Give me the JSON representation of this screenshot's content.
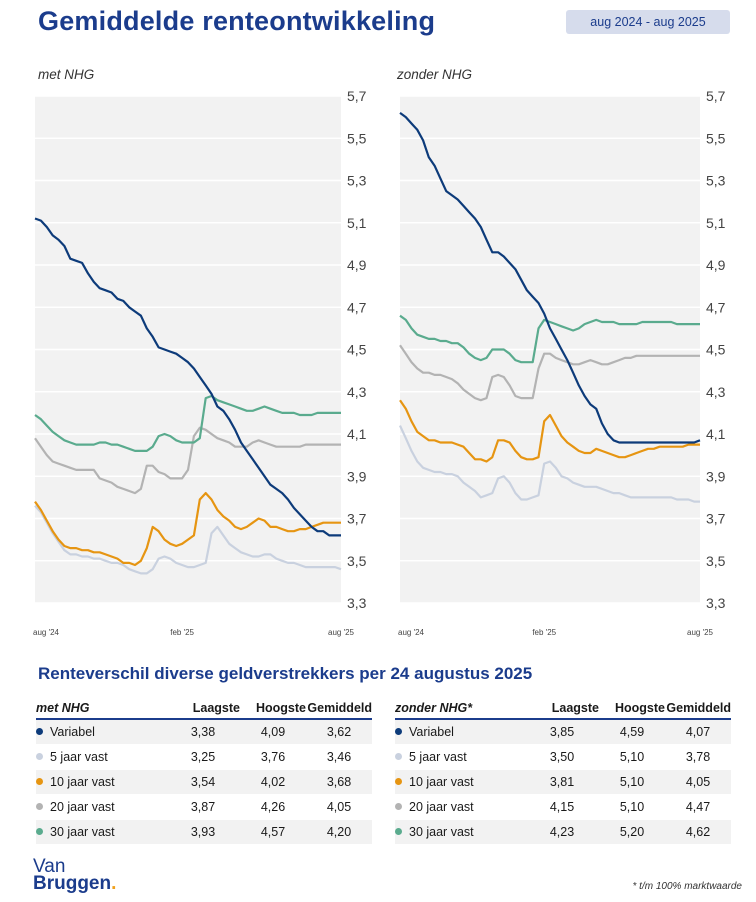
{
  "title": "Gemiddelde renteontwikkeling",
  "period": "aug 2024 - aug 2025",
  "colors": {
    "variabel": "#0d3b7a",
    "5_jaar_vast": "#c9d1df",
    "10_jaar_vast": "#e69512",
    "20_jaar_vast": "#b3b3b3",
    "30_jaar_vast": "#5aab8e",
    "brand": "#1b3c8c"
  },
  "chart_data": [
    {
      "type": "line",
      "label": "met NHG",
      "ylim": [
        3.3,
        5.7
      ],
      "yticks": [
        "5,7",
        "5,5",
        "5,3",
        "5,1",
        "4,9",
        "4,7",
        "4,5",
        "4,3",
        "4,1",
        "3,9",
        "3,7",
        "3,5",
        "3,3"
      ],
      "xticks": [
        "aug '24",
        "feb '25",
        "aug '25"
      ],
      "x": [
        0,
        1,
        2,
        3,
        4,
        5,
        6,
        7,
        8,
        9,
        10,
        11,
        12,
        13,
        14,
        15,
        16,
        17,
        18,
        19,
        20,
        21,
        22,
        23,
        24,
        25,
        26,
        27,
        28,
        29,
        30,
        31,
        32,
        33,
        34,
        35,
        36,
        37,
        38,
        39,
        40,
        41,
        42,
        43,
        44,
        45,
        46,
        47,
        48,
        49,
        50,
        51,
        52
      ],
      "series": [
        {
          "name": "Variabel",
          "color_key": "variabel",
          "values": [
            5.12,
            5.11,
            5.08,
            5.04,
            5.02,
            4.99,
            4.93,
            4.92,
            4.91,
            4.86,
            4.82,
            4.79,
            4.78,
            4.77,
            4.74,
            4.73,
            4.7,
            4.68,
            4.66,
            4.6,
            4.56,
            4.51,
            4.5,
            4.49,
            4.48,
            4.46,
            4.44,
            4.41,
            4.37,
            4.33,
            4.29,
            4.23,
            4.21,
            4.17,
            4.12,
            4.06,
            4.02,
            3.98,
            3.94,
            3.9,
            3.86,
            3.84,
            3.82,
            3.79,
            3.75,
            3.72,
            3.69,
            3.66,
            3.64,
            3.64,
            3.62,
            3.62,
            3.62
          ]
        },
        {
          "name": "5 jaar vast",
          "color_key": "5_jaar_vast",
          "values": [
            3.76,
            3.73,
            3.68,
            3.63,
            3.59,
            3.55,
            3.53,
            3.53,
            3.52,
            3.52,
            3.51,
            3.51,
            3.5,
            3.49,
            3.49,
            3.48,
            3.46,
            3.45,
            3.44,
            3.44,
            3.46,
            3.51,
            3.52,
            3.51,
            3.49,
            3.48,
            3.47,
            3.47,
            3.48,
            3.49,
            3.63,
            3.66,
            3.62,
            3.58,
            3.56,
            3.54,
            3.53,
            3.52,
            3.52,
            3.53,
            3.53,
            3.51,
            3.5,
            3.49,
            3.49,
            3.48,
            3.47,
            3.47,
            3.47,
            3.47,
            3.47,
            3.47,
            3.46
          ]
        },
        {
          "name": "10 jaar vast",
          "color_key": "10_jaar_vast",
          "values": [
            3.78,
            3.74,
            3.69,
            3.64,
            3.6,
            3.57,
            3.56,
            3.56,
            3.55,
            3.55,
            3.54,
            3.54,
            3.53,
            3.52,
            3.51,
            3.49,
            3.49,
            3.48,
            3.5,
            3.56,
            3.66,
            3.64,
            3.6,
            3.58,
            3.57,
            3.58,
            3.6,
            3.62,
            3.79,
            3.82,
            3.79,
            3.74,
            3.71,
            3.69,
            3.66,
            3.65,
            3.66,
            3.68,
            3.7,
            3.69,
            3.66,
            3.66,
            3.65,
            3.64,
            3.64,
            3.65,
            3.65,
            3.66,
            3.67,
            3.68,
            3.68,
            3.68,
            3.68
          ]
        },
        {
          "name": "20 jaar vast",
          "color_key": "20_jaar_vast",
          "values": [
            4.08,
            4.04,
            4.0,
            3.97,
            3.96,
            3.95,
            3.94,
            3.93,
            3.93,
            3.93,
            3.93,
            3.89,
            3.88,
            3.87,
            3.85,
            3.84,
            3.83,
            3.82,
            3.84,
            3.95,
            3.95,
            3.92,
            3.91,
            3.89,
            3.89,
            3.89,
            3.93,
            4.09,
            4.13,
            4.12,
            4.1,
            4.08,
            4.07,
            4.06,
            4.04,
            4.04,
            4.04,
            4.06,
            4.07,
            4.06,
            4.05,
            4.04,
            4.04,
            4.04,
            4.04,
            4.04,
            4.05,
            4.05,
            4.05,
            4.05,
            4.05,
            4.05,
            4.05
          ]
        },
        {
          "name": "30 jaar vast",
          "color_key": "30_jaar_vast",
          "values": [
            4.19,
            4.17,
            4.14,
            4.11,
            4.09,
            4.07,
            4.06,
            4.05,
            4.05,
            4.05,
            4.05,
            4.06,
            4.06,
            4.05,
            4.05,
            4.04,
            4.03,
            4.02,
            4.02,
            4.02,
            4.04,
            4.09,
            4.1,
            4.09,
            4.07,
            4.06,
            4.06,
            4.06,
            4.08,
            4.27,
            4.28,
            4.26,
            4.25,
            4.24,
            4.23,
            4.22,
            4.21,
            4.21,
            4.22,
            4.23,
            4.22,
            4.21,
            4.2,
            4.2,
            4.2,
            4.19,
            4.19,
            4.19,
            4.2,
            4.2,
            4.2,
            4.2,
            4.2
          ]
        }
      ]
    },
    {
      "type": "line",
      "label": "zonder NHG",
      "ylim": [
        3.3,
        5.7
      ],
      "yticks": [
        "5,7",
        "5,5",
        "5,3",
        "5,1",
        "4,9",
        "4,7",
        "4,5",
        "4,3",
        "4,1",
        "3,9",
        "3,7",
        "3,5",
        "3,3"
      ],
      "xticks": [
        "aug '24",
        "feb '25",
        "aug '25"
      ],
      "x": [
        0,
        1,
        2,
        3,
        4,
        5,
        6,
        7,
        8,
        9,
        10,
        11,
        12,
        13,
        14,
        15,
        16,
        17,
        18,
        19,
        20,
        21,
        22,
        23,
        24,
        25,
        26,
        27,
        28,
        29,
        30,
        31,
        32,
        33,
        34,
        35,
        36,
        37,
        38,
        39,
        40,
        41,
        42,
        43,
        44,
        45,
        46,
        47,
        48,
        49,
        50,
        51,
        52
      ],
      "series": [
        {
          "name": "Variabel",
          "color_key": "variabel",
          "values": [
            5.62,
            5.6,
            5.57,
            5.54,
            5.49,
            5.41,
            5.37,
            5.31,
            5.25,
            5.23,
            5.21,
            5.18,
            5.15,
            5.12,
            5.08,
            5.02,
            4.96,
            4.96,
            4.94,
            4.91,
            4.88,
            4.83,
            4.78,
            4.75,
            4.72,
            4.67,
            4.6,
            4.55,
            4.5,
            4.45,
            4.39,
            4.33,
            4.28,
            4.24,
            4.22,
            4.15,
            4.1,
            4.07,
            4.06,
            4.06,
            4.06,
            4.06,
            4.06,
            4.06,
            4.06,
            4.06,
            4.06,
            4.06,
            4.06,
            4.06,
            4.06,
            4.06,
            4.07
          ]
        },
        {
          "name": "5 jaar vast",
          "color_key": "5_jaar_vast",
          "values": [
            4.14,
            4.08,
            4.02,
            3.97,
            3.94,
            3.93,
            3.92,
            3.92,
            3.91,
            3.91,
            3.9,
            3.87,
            3.85,
            3.83,
            3.8,
            3.81,
            3.82,
            3.89,
            3.9,
            3.87,
            3.82,
            3.79,
            3.79,
            3.8,
            3.81,
            3.96,
            3.97,
            3.94,
            3.9,
            3.89,
            3.87,
            3.86,
            3.85,
            3.85,
            3.85,
            3.84,
            3.83,
            3.82,
            3.82,
            3.81,
            3.8,
            3.8,
            3.8,
            3.8,
            3.8,
            3.8,
            3.8,
            3.8,
            3.79,
            3.79,
            3.79,
            3.78,
            3.78
          ]
        },
        {
          "name": "10 jaar vast",
          "color_key": "10_jaar_vast",
          "values": [
            4.26,
            4.22,
            4.16,
            4.11,
            4.09,
            4.07,
            4.07,
            4.06,
            4.06,
            4.06,
            4.05,
            4.04,
            4.01,
            3.98,
            3.98,
            3.97,
            3.99,
            4.07,
            4.07,
            4.06,
            4.02,
            3.99,
            3.98,
            3.98,
            3.99,
            4.16,
            4.19,
            4.14,
            4.09,
            4.06,
            4.04,
            4.02,
            4.01,
            4.01,
            4.03,
            4.02,
            4.01,
            4.0,
            3.99,
            3.99,
            4.0,
            4.01,
            4.02,
            4.03,
            4.03,
            4.04,
            4.04,
            4.04,
            4.04,
            4.04,
            4.05,
            4.05,
            4.05
          ]
        },
        {
          "name": "20 jaar vast",
          "color_key": "20_jaar_vast",
          "values": [
            4.52,
            4.48,
            4.44,
            4.41,
            4.39,
            4.39,
            4.38,
            4.38,
            4.37,
            4.36,
            4.34,
            4.31,
            4.29,
            4.27,
            4.26,
            4.27,
            4.37,
            4.38,
            4.37,
            4.33,
            4.28,
            4.27,
            4.27,
            4.27,
            4.41,
            4.48,
            4.48,
            4.46,
            4.45,
            4.44,
            4.43,
            4.43,
            4.44,
            4.45,
            4.44,
            4.43,
            4.43,
            4.44,
            4.45,
            4.46,
            4.46,
            4.47,
            4.47,
            4.47,
            4.47,
            4.47,
            4.47,
            4.47,
            4.47,
            4.47,
            4.47,
            4.47,
            4.47
          ]
        },
        {
          "name": "30 jaar vast",
          "color_key": "30_jaar_vast",
          "values": [
            4.66,
            4.64,
            4.6,
            4.57,
            4.56,
            4.55,
            4.55,
            4.54,
            4.54,
            4.53,
            4.53,
            4.51,
            4.48,
            4.46,
            4.45,
            4.46,
            4.5,
            4.5,
            4.5,
            4.48,
            4.45,
            4.44,
            4.44,
            4.44,
            4.6,
            4.64,
            4.63,
            4.62,
            4.61,
            4.6,
            4.59,
            4.6,
            4.62,
            4.63,
            4.64,
            4.63,
            4.63,
            4.63,
            4.62,
            4.62,
            4.62,
            4.62,
            4.63,
            4.63,
            4.63,
            4.63,
            4.63,
            4.63,
            4.62,
            4.62,
            4.62,
            4.62,
            4.62
          ]
        }
      ]
    }
  ],
  "section_title": "Renteverschil diverse geldverstrekkers per 24 augustus 2025",
  "tables": {
    "met": {
      "name": "met NHG",
      "headers": [
        "Laagste",
        "Hoogste",
        "Gemiddeld"
      ],
      "rows": [
        {
          "label": "Variabel",
          "color_key": "variabel",
          "low": "3,38",
          "high": "4,09",
          "avg": "3,62"
        },
        {
          "label": "5 jaar vast",
          "color_key": "5_jaar_vast",
          "low": "3,25",
          "high": "3,76",
          "avg": "3,46"
        },
        {
          "label": "10 jaar vast",
          "color_key": "10_jaar_vast",
          "low": "3,54",
          "high": "4,02",
          "avg": "3,68"
        },
        {
          "label": "20 jaar vast",
          "color_key": "20_jaar_vast",
          "low": "3,87",
          "high": "4,26",
          "avg": "4,05"
        },
        {
          "label": "30 jaar vast",
          "color_key": "30_jaar_vast",
          "low": "3,93",
          "high": "4,57",
          "avg": "4,20"
        }
      ]
    },
    "zonder": {
      "name": "zonder NHG*",
      "headers": [
        "Laagste",
        "Hoogste",
        "Gemiddeld"
      ],
      "rows": [
        {
          "label": "Variabel",
          "color_key": "variabel",
          "low": "3,85",
          "high": "4,59",
          "avg": "4,07"
        },
        {
          "label": "5 jaar vast",
          "color_key": "5_jaar_vast",
          "low": "3,50",
          "high": "5,10",
          "avg": "3,78"
        },
        {
          "label": "10 jaar vast",
          "color_key": "10_jaar_vast",
          "low": "3,81",
          "high": "5,10",
          "avg": "4,05"
        },
        {
          "label": "20 jaar vast",
          "color_key": "20_jaar_vast",
          "low": "4,15",
          "high": "5,10",
          "avg": "4,47"
        },
        {
          "label": "30 jaar vast",
          "color_key": "30_jaar_vast",
          "low": "4,23",
          "high": "5,20",
          "avg": "4,62"
        }
      ]
    }
  },
  "logo": {
    "line1": "Van",
    "line2": "Bruggen",
    "dot": "."
  },
  "footnote": "* t/m 100% marktwaarde"
}
